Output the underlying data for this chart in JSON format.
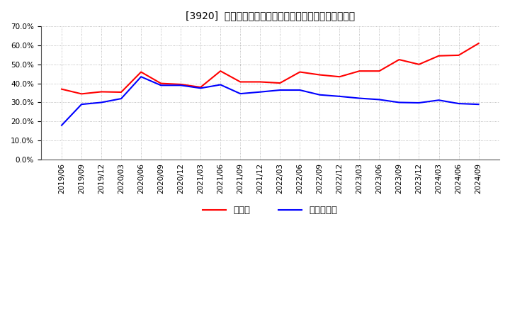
{
  "title": "[3920]  現預金、有利子負債の総資産に対する比率の推移",
  "x_labels": [
    "2019/06",
    "2019/09",
    "2019/12",
    "2020/03",
    "2020/06",
    "2020/09",
    "2020/12",
    "2021/03",
    "2021/06",
    "2021/09",
    "2021/12",
    "2022/03",
    "2022/06",
    "2022/09",
    "2022/12",
    "2023/03",
    "2023/06",
    "2023/09",
    "2023/12",
    "2024/03",
    "2024/06",
    "2024/09"
  ],
  "cash_values": [
    0.37,
    0.345,
    0.356,
    0.354,
    0.46,
    0.4,
    0.395,
    0.38,
    0.465,
    0.408,
    0.408,
    0.402,
    0.46,
    0.445,
    0.435,
    0.465,
    0.465,
    0.525,
    0.5,
    0.545,
    0.548,
    0.61
  ],
  "debt_values": [
    0.18,
    0.29,
    0.3,
    0.32,
    0.435,
    0.39,
    0.39,
    0.375,
    0.393,
    0.346,
    0.355,
    0.365,
    0.365,
    0.34,
    0.332,
    0.322,
    0.315,
    0.3,
    0.298,
    0.312,
    0.294,
    0.29
  ],
  "cash_color": "#ff0000",
  "debt_color": "#0000ff",
  "bg_color": "#ffffff",
  "plot_bg_color": "#ffffff",
  "grid_color": "#aaaaaa",
  "ylim": [
    0.0,
    0.7
  ],
  "ytick_step": 0.1,
  "legend_cash": "現預金",
  "legend_debt": "有利子負債",
  "title_fontsize": 11,
  "tick_fontsize": 7.5,
  "legend_fontsize": 9.5
}
